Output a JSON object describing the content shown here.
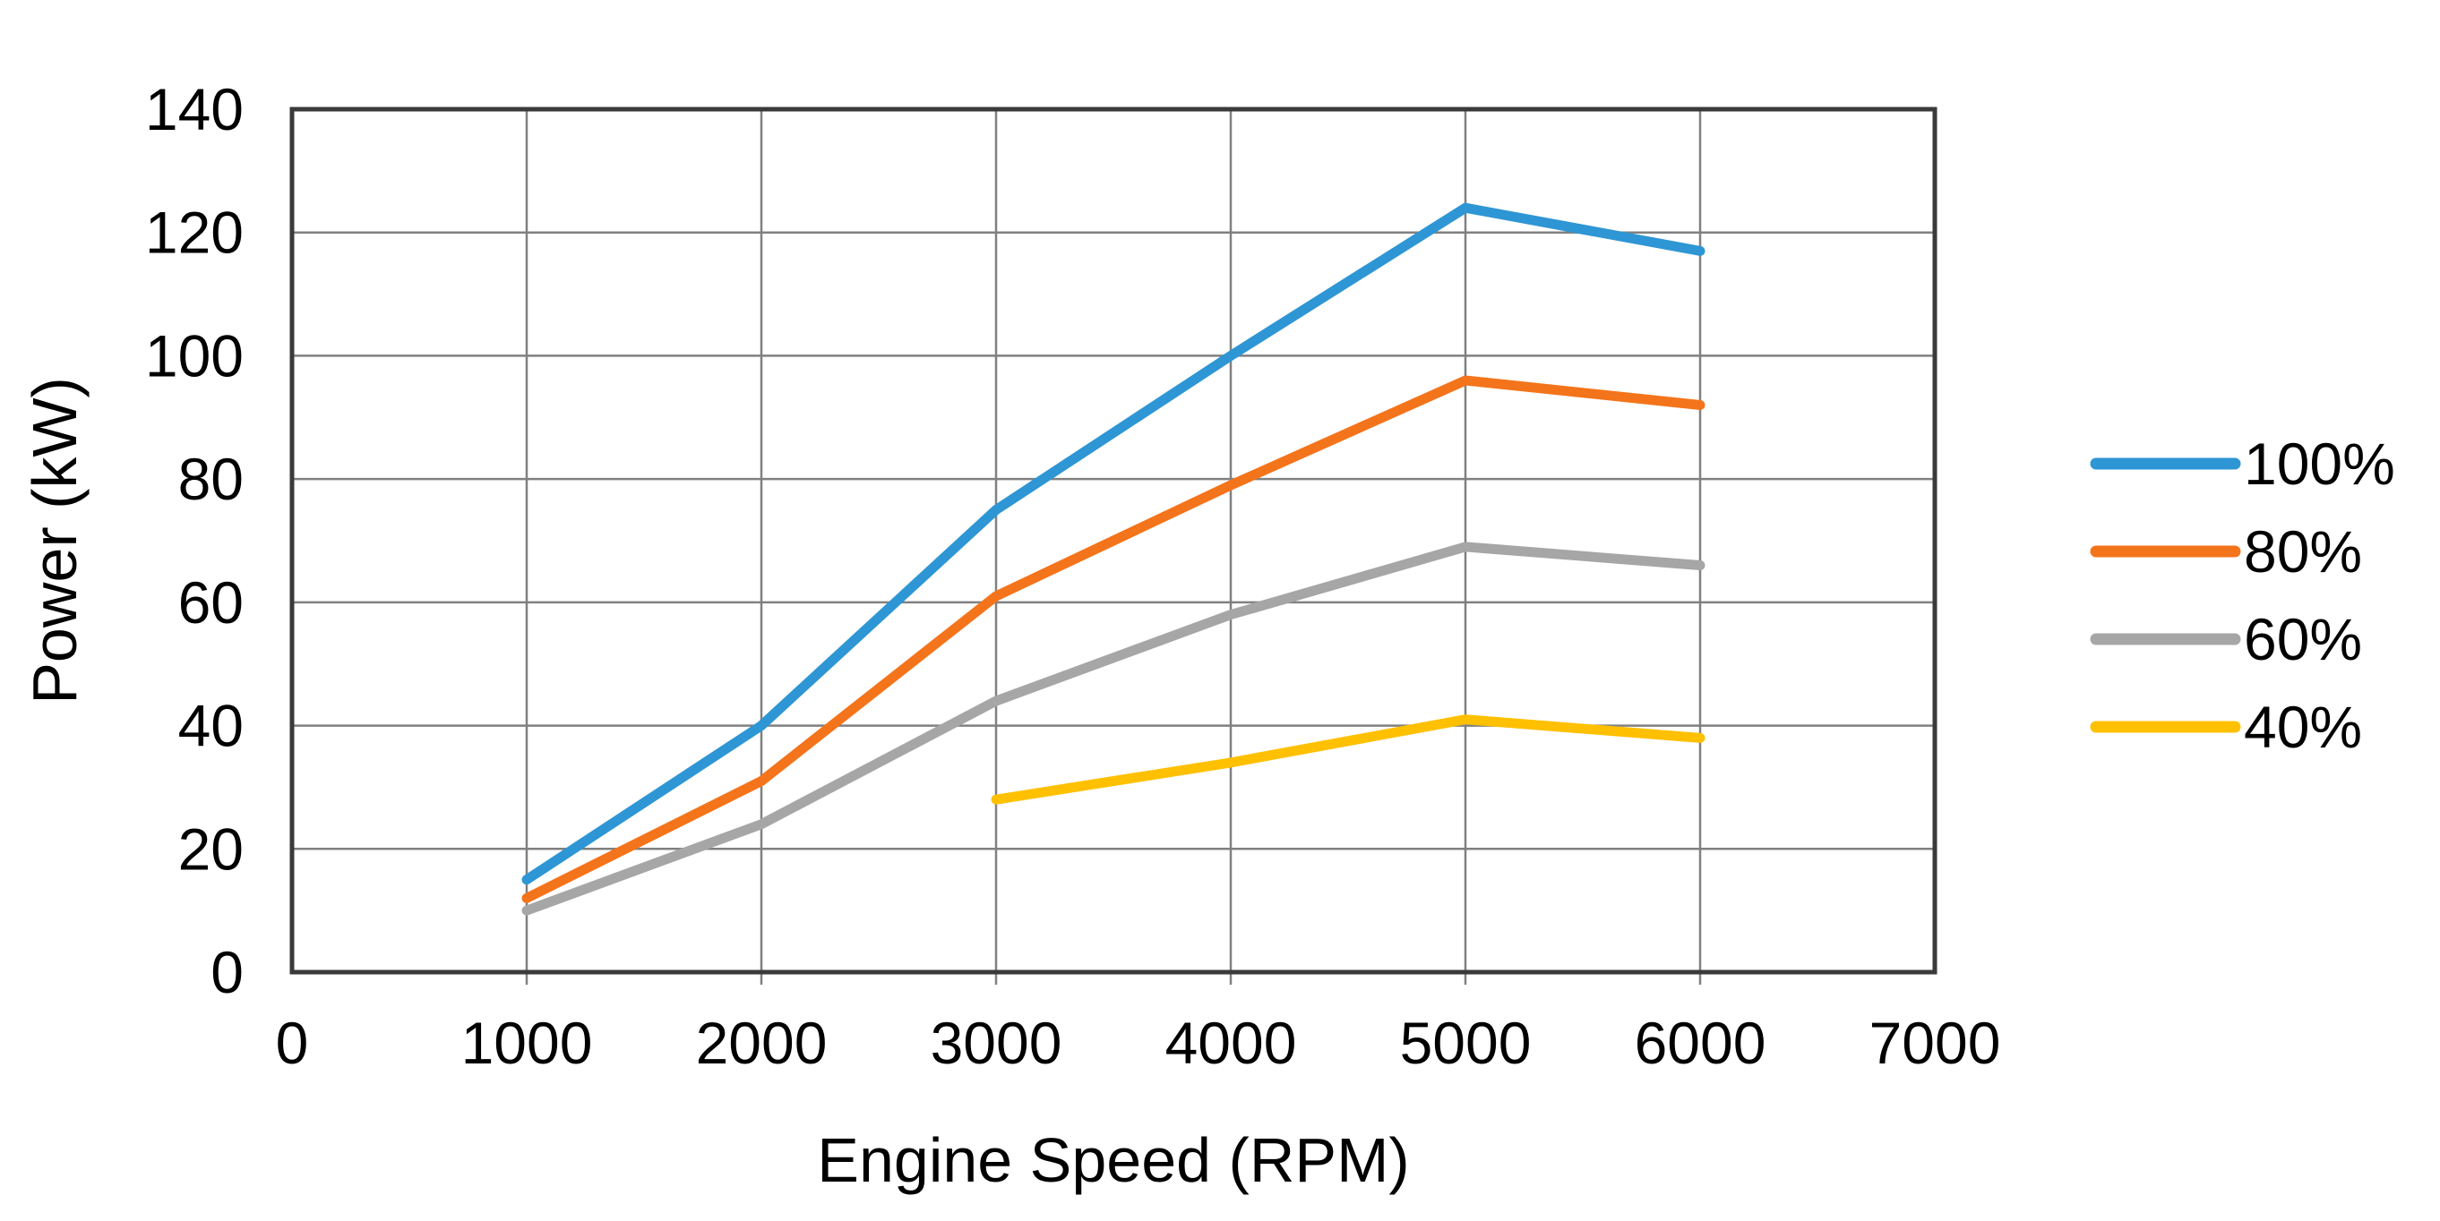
{
  "chart_data": {
    "type": "line",
    "title": "",
    "xlabel": "Engine Speed (RPM)",
    "ylabel": "Power (kW)",
    "xlim": [
      0,
      7000
    ],
    "ylim": [
      0,
      140
    ],
    "xticks": [
      0,
      1000,
      2000,
      3000,
      4000,
      5000,
      6000,
      7000
    ],
    "yticks": [
      0,
      20,
      40,
      60,
      80,
      100,
      120,
      140
    ],
    "grid": true,
    "legend_position": "right",
    "series": [
      {
        "name": "100%",
        "color": "#2E96D4",
        "x": [
          1000,
          2000,
          3000,
          4000,
          5000,
          6000
        ],
        "y": [
          15,
          40,
          75,
          100,
          124,
          117
        ]
      },
      {
        "name": "80%",
        "color": "#F4741B",
        "x": [
          1000,
          2000,
          3000,
          4000,
          5000,
          6000
        ],
        "y": [
          12,
          31,
          61,
          79,
          96,
          92
        ]
      },
      {
        "name": "60%",
        "color": "#A6A6A6",
        "x": [
          1000,
          2000,
          3000,
          4000,
          5000,
          6000
        ],
        "y": [
          10,
          24,
          44,
          58,
          69,
          66
        ]
      },
      {
        "name": "40%",
        "color": "#FFC000",
        "x": [
          3000,
          4000,
          5000,
          6000
        ],
        "y": [
          28,
          34,
          41,
          38
        ]
      }
    ],
    "colors": {
      "plot_border": "#3A3A3A",
      "gridline": "#808080",
      "text": "#000000",
      "background": "#FFFFFF"
    }
  }
}
